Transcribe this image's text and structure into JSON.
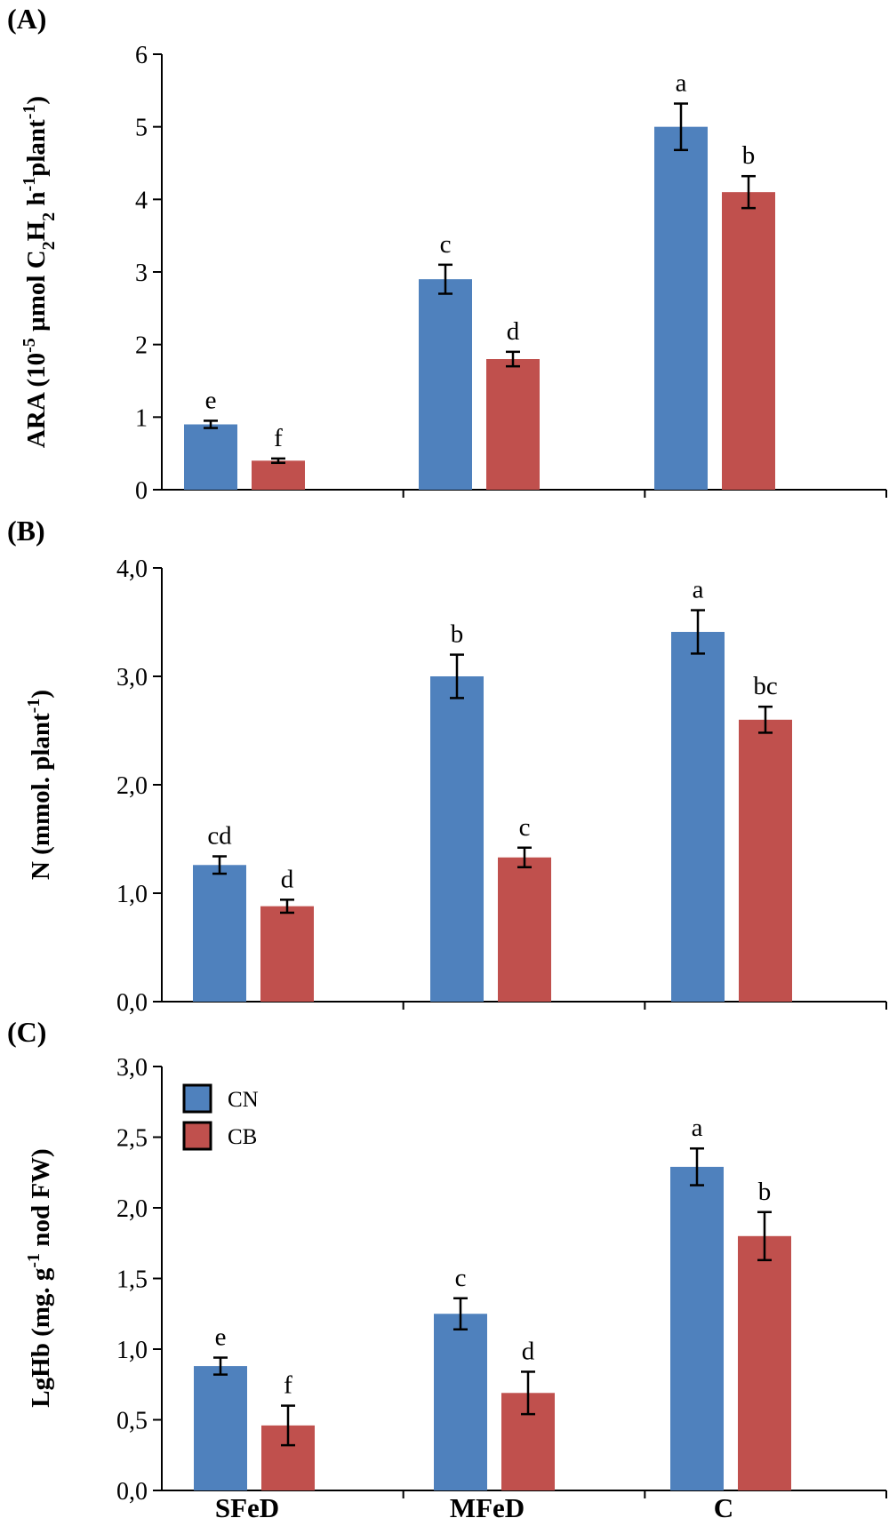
{
  "series_colors": {
    "CN": "#4f81bd",
    "CB": "#c0504d"
  },
  "chart_data": [
    {
      "type": "bar",
      "panel_label": "(A)",
      "ylabel_parts": [
        "ARA (10",
        "-5",
        " µmol C",
        "2",
        "H",
        "2",
        " h",
        "-1",
        "plant",
        "-1",
        ")"
      ],
      "ylim": [
        0,
        6
      ],
      "yticks": [
        "0",
        "1",
        "2",
        "3",
        "4",
        "5",
        "6"
      ],
      "categories": [
        "SFeD",
        "MFeD",
        "C"
      ],
      "show_category_labels": false,
      "series": [
        {
          "name": "CN",
          "values": [
            0.9,
            2.9,
            5.0
          ],
          "errors": [
            0.05,
            0.2,
            0.32
          ],
          "letters": [
            "e",
            "c",
            "a"
          ]
        },
        {
          "name": "CB",
          "values": [
            0.4,
            1.8,
            4.1
          ],
          "errors": [
            0.03,
            0.1,
            0.22
          ],
          "letters": [
            "f",
            "d",
            "b"
          ]
        }
      ]
    },
    {
      "type": "bar",
      "panel_label": "(B)",
      "ylabel_parts": [
        "N (mmol. plant",
        "-1",
        ")"
      ],
      "ylim": [
        0,
        4
      ],
      "yticks": [
        "0,0",
        "1,0",
        "2,0",
        "3,0",
        "4,0"
      ],
      "categories": [
        "SFeD",
        "MFeD",
        "C"
      ],
      "show_category_labels": false,
      "series": [
        {
          "name": "CN",
          "values": [
            1.26,
            3.0,
            3.41
          ],
          "errors": [
            0.08,
            0.2,
            0.2
          ],
          "letters": [
            "cd",
            "b",
            "a"
          ]
        },
        {
          "name": "CB",
          "values": [
            0.88,
            1.33,
            2.6
          ],
          "errors": [
            0.06,
            0.09,
            0.12
          ],
          "letters": [
            "d",
            "c",
            "bc"
          ]
        }
      ]
    },
    {
      "type": "bar",
      "panel_label": "(C)",
      "ylabel_parts": [
        "LgHb (mg. g",
        "-1",
        " nod FW)"
      ],
      "ylim": [
        0,
        3
      ],
      "yticks": [
        "0,0",
        "0,5",
        "1,0",
        "1,5",
        "2,0",
        "2,5",
        "3,0"
      ],
      "categories": [
        "SFeD",
        "MFeD",
        "C"
      ],
      "show_category_labels": true,
      "legend": {
        "placement": "top-left",
        "entries": [
          "CN",
          "CB"
        ]
      },
      "series": [
        {
          "name": "CN",
          "values": [
            0.88,
            1.25,
            2.29
          ],
          "errors": [
            0.06,
            0.11,
            0.13
          ],
          "letters": [
            "e",
            "c",
            "a"
          ]
        },
        {
          "name": "CB",
          "values": [
            0.46,
            0.69,
            1.8
          ],
          "errors": [
            0.14,
            0.15,
            0.17
          ],
          "letters": [
            "f",
            "d",
            "b"
          ]
        }
      ]
    }
  ]
}
